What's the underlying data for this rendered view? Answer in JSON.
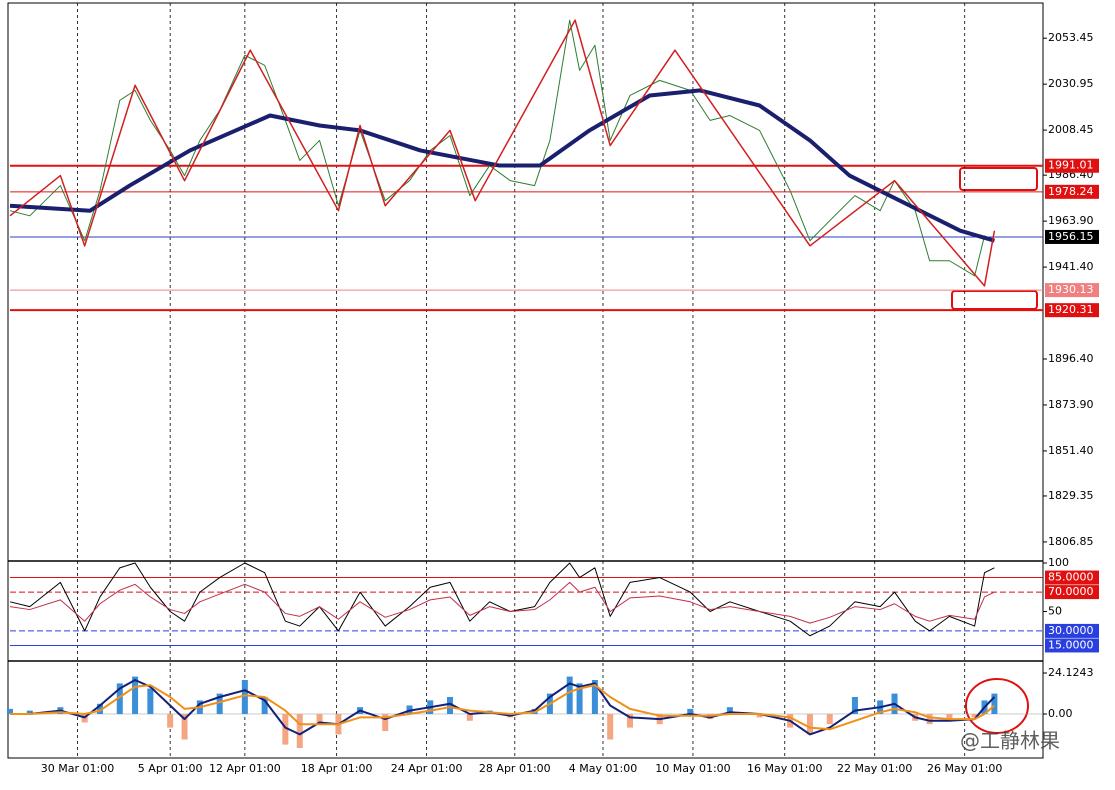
{
  "chart_data": [
    {
      "type": "line",
      "xlim": [
        -7.5,
        107.3
      ],
      "xticks": [
        {
          "value": 0,
          "label": "30 Mar 01:00"
        },
        {
          "value": 10.3,
          "label": "5 Apr 01:00"
        },
        {
          "value": 18.6,
          "label": "12 Apr 01:00"
        },
        {
          "value": 28.8,
          "label": "18 Apr 01:00"
        },
        {
          "value": 38.8,
          "label": "24 Apr 01:00"
        },
        {
          "value": 48.6,
          "label": "28 Apr 01:00"
        },
        {
          "value": 58.4,
          "label": "4 May 01:00"
        },
        {
          "value": 68.4,
          "label": "10 May 01:00"
        },
        {
          "value": 78.6,
          "label": "16 May 01:00"
        },
        {
          "value": 88.6,
          "label": "22 May 01:00"
        },
        {
          "value": 98.6,
          "label": "26 May 01:00"
        }
      ],
      "ylim": [
        1798,
        2069.7
      ],
      "yticks": [
        2053.45,
        2030.95,
        2008.45,
        {
          "value": 1986.4,
          "label": "1986.40"
        },
        {
          "value": 1963.9,
          "label": "1963.90"
        },
        {
          "value": 1941.4,
          "label": "1941.40"
        },
        {
          "value": 1896.4,
          "label": "1896.40"
        },
        {
          "value": 1873.9,
          "label": "1873.90"
        },
        {
          "value": 1851.4,
          "label": "1851.40"
        },
        1829.35,
        1806.85
      ],
      "series": [
        {
          "color": "#2e7d32",
          "width": 1,
          "x": [
            -7.5,
            -5.3,
            -1.9,
            0.8,
            2.5,
            4.7,
            6.4,
            8.1,
            10.3,
            11.9,
            13.6,
            15.8,
            18.6,
            20.8,
            23.1,
            24.7,
            26.9,
            29,
            31.4,
            34.2,
            36.9,
            39.2,
            41.4,
            43.6,
            45.8,
            48.1,
            50.8,
            52.5,
            54.7,
            55.8,
            57.5,
            59.2,
            61.4,
            64.7,
            68.1,
            70.3,
            72.5,
            75.8,
            79.2,
            81.4,
            83.6,
            86.4,
            89.2,
            90.8,
            93.1,
            94.7,
            96.9,
            99.7,
            100.8,
            101.9
          ],
          "values": [
            1969.0,
            1966.5,
            1981.3,
            1954.3,
            1978.8,
            2023.0,
            2027.9,
            2013.2,
            1998.5,
            1986.2,
            2003.4,
            2018.1,
            2045.1,
            2040.2,
            2013.2,
            1993.6,
            2003.4,
            1971.4,
            2008.3,
            1973.9,
            1983.7,
            1998.5,
            2005.8,
            1976.4,
            1991.1,
            1983.7,
            1981.3,
            2003.4,
            2062.3,
            2037.7,
            2050.0,
            2003.4,
            2025.4,
            2032.8,
            2027.9,
            2013.2,
            2015.6,
            2008.3,
            1978.8,
            1954.3,
            1964.1,
            1976.4,
            1969.0,
            1983.7,
            1969.0,
            1944.5,
            1944.5,
            1937.1,
            1956.7,
            1954.3
          ]
        },
        {
          "color": "#1a1f6e",
          "width": 4,
          "x": [
            -7.5,
            1.4,
            5.8,
            12.5,
            21.4,
            26.9,
            31.4,
            38.1,
            46.9,
            51.4,
            56.9,
            63.6,
            69.2,
            75.8,
            81.4,
            85.8,
            91.4,
            98.1,
            101.9
          ],
          "values": [
            1971.4,
            1969.0,
            1981.3,
            1998.5,
            2015.6,
            2010.7,
            2008.3,
            1998.5,
            1991.1,
            1991.1,
            2008.3,
            2025.4,
            2027.9,
            2020.5,
            2003.4,
            1986.2,
            1973.9,
            1959.2,
            1954.3
          ]
        },
        {
          "color": "#d21f1f",
          "width": 1.5,
          "x": [
            -7.5,
            -1.9,
            0.8,
            6.4,
            11.9,
            19.2,
            29,
            31.4,
            34.2,
            41.4,
            44.2,
            55.3,
            59.2,
            66.4,
            81.4,
            90.8,
            100.8,
            101.9
          ],
          "values": [
            1966.5,
            1986.2,
            1951.8,
            2030.4,
            1983.7,
            2047.6,
            1969.0,
            2010.7,
            1971.4,
            2008.3,
            1973.9,
            2062.3,
            2000.9,
            2047.6,
            1951.8,
            1983.7,
            1932.2,
            1959.2
          ]
        }
      ],
      "levels": [
        {
          "value": 1991.01,
          "color": "#e01010",
          "width": 2
        },
        {
          "value": 1978.24,
          "color": "#e01010",
          "width": 1
        },
        {
          "value": 1956.15,
          "color": "#2a3fbf",
          "width": 1,
          "label_color": "#000"
        },
        {
          "value": 1930.13,
          "color": "#f08080",
          "width": 1
        },
        {
          "value": 1920.31,
          "color": "#e01010",
          "width": 2
        }
      ],
      "watermark": "@工静林果"
    },
    {
      "type": "line",
      "xlim": [
        -7.5,
        107.3
      ],
      "ylim": [
        0,
        100
      ],
      "yticks": [
        100,
        50
      ],
      "series": [
        {
          "color": "#000",
          "width": 1,
          "x": [
            -7.5,
            -5.3,
            -1.9,
            0.8,
            2.5,
            4.7,
            6.4,
            8.1,
            10.3,
            11.9,
            13.6,
            15.8,
            18.6,
            20.8,
            23.1,
            24.7,
            26.9,
            29,
            31.4,
            34.2,
            36.9,
            39.2,
            41.4,
            43.6,
            45.8,
            48.1,
            50.8,
            52.5,
            54.7,
            55.8,
            57.5,
            59.2,
            61.4,
            64.7,
            68.1,
            70.3,
            72.5,
            75.8,
            79.2,
            81.4,
            83.6,
            86.4,
            89.2,
            90.8,
            93.1,
            94.7,
            96.9,
            99.7,
            100.8,
            101.9
          ],
          "values": [
            60,
            55,
            80,
            30,
            65,
            95,
            100,
            75,
            50,
            40,
            70,
            85,
            100,
            90,
            40,
            35,
            55,
            30,
            70,
            35,
            55,
            75,
            80,
            40,
            60,
            50,
            55,
            80,
            100,
            85,
            95,
            45,
            80,
            85,
            70,
            50,
            60,
            50,
            40,
            25,
            35,
            60,
            55,
            70,
            40,
            30,
            45,
            35,
            90,
            95
          ]
        },
        {
          "color": "#c0304a",
          "width": 1,
          "x": [
            -7.5,
            -5.3,
            -1.9,
            0.8,
            2.5,
            4.7,
            6.4,
            8.1,
            10.3,
            11.9,
            13.6,
            15.8,
            18.6,
            20.8,
            23.1,
            24.7,
            26.9,
            29,
            31.4,
            34.2,
            36.9,
            39.2,
            41.4,
            43.6,
            45.8,
            48.1,
            50.8,
            52.5,
            54.7,
            55.8,
            57.5,
            59.2,
            61.4,
            64.7,
            68.1,
            70.3,
            72.5,
            75.8,
            79.2,
            81.4,
            83.6,
            86.4,
            89.2,
            90.8,
            93.1,
            94.7,
            96.9,
            99.7,
            100.8,
            101.9
          ],
          "values": [
            55,
            52,
            62,
            40,
            58,
            72,
            78,
            65,
            52,
            48,
            60,
            68,
            78,
            70,
            48,
            45,
            55,
            42,
            60,
            44,
            52,
            62,
            65,
            46,
            55,
            50,
            52,
            62,
            80,
            70,
            75,
            50,
            64,
            66,
            60,
            52,
            55,
            50,
            45,
            38,
            44,
            55,
            52,
            58,
            45,
            40,
            46,
            42,
            65,
            70
          ]
        }
      ],
      "levels": [
        {
          "value": 85,
          "label": "85.0000",
          "color": "#e01010",
          "width": 1
        },
        {
          "value": 70,
          "label": "70.0000",
          "color": "#e01010",
          "width": 1,
          "dash": true
        },
        {
          "value": 30,
          "label": "30.0000",
          "color": "#2a3fdf",
          "width": 1,
          "dash": true
        },
        {
          "value": 15,
          "label": "15.0000",
          "color": "#2a3fdf",
          "width": 1
        }
      ]
    },
    {
      "type": "macd",
      "xlim": [
        -7.5,
        107.3
      ],
      "ylim": [
        -25.3,
        30
      ],
      "yticks": [
        24.1243,
        {
          "value": 0,
          "label": "0.00"
        }
      ],
      "x": [
        -7.5,
        -5.3,
        -1.9,
        0.8,
        2.5,
        4.7,
        6.4,
        8.1,
        10.3,
        11.9,
        13.6,
        15.8,
        18.6,
        20.8,
        23.1,
        24.7,
        26.9,
        29,
        31.4,
        34.2,
        36.9,
        39.2,
        41.4,
        43.6,
        45.8,
        48.1,
        50.8,
        52.5,
        54.7,
        55.8,
        57.5,
        59.2,
        61.4,
        64.7,
        68.1,
        70.3,
        72.5,
        75.8,
        79.2,
        81.4,
        83.6,
        86.4,
        89.2,
        90.8,
        93.1,
        94.7,
        96.9,
        99.7,
        100.8,
        101.9
      ],
      "histogram": {
        "pos_color": "#3a8fd8",
        "neg_color": "#f4a582",
        "values": [
          3,
          2,
          4,
          -5,
          6,
          18,
          22,
          15,
          -8,
          -15,
          8,
          12,
          20,
          10,
          -18,
          -20,
          -6,
          -12,
          4,
          -10,
          5,
          8,
          10,
          -4,
          2,
          -2,
          3,
          12,
          22,
          18,
          20,
          -15,
          -8,
          -6,
          3,
          -3,
          4,
          -2,
          -8,
          -12,
          -6,
          10,
          8,
          12,
          -4,
          -6,
          -3,
          -2,
          8,
          12
        ]
      },
      "series": [
        {
          "color": "#12207a",
          "width": 2,
          "values": [
            0,
            0,
            2,
            -2,
            5,
            15,
            20,
            16,
            5,
            -3,
            6,
            10,
            14,
            8,
            -8,
            -12,
            -5,
            -6,
            2,
            -3,
            2,
            4,
            6,
            0,
            1,
            -1,
            2,
            10,
            18,
            16,
            18,
            5,
            -2,
            -3,
            0,
            -2,
            1,
            0,
            -4,
            -12,
            -8,
            2,
            4,
            6,
            -2,
            -4,
            -4,
            -3,
            4,
            10
          ]
        },
        {
          "color": "#f0901a",
          "width": 2,
          "values": [
            0,
            0,
            1,
            0,
            2,
            10,
            16,
            17,
            10,
            3,
            4,
            7,
            11,
            10,
            2,
            -6,
            -6,
            -6,
            -2,
            -2,
            0,
            2,
            4,
            2,
            1,
            0,
            1,
            6,
            13,
            15,
            17,
            10,
            3,
            -1,
            -1,
            -1,
            0,
            0,
            -2,
            -8,
            -9,
            -4,
            1,
            3,
            1,
            -2,
            -3,
            -3,
            0,
            5
          ]
        }
      ]
    }
  ]
}
